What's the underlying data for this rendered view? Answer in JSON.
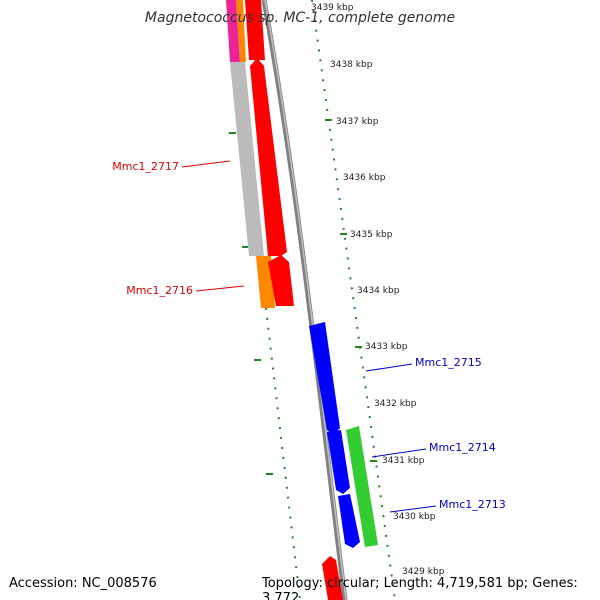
{
  "title": "Magnetococcus sp. MC-1, complete genome",
  "footer": {
    "accession": "Accession: NC_008576",
    "summary": "Topology: circular; Length: 4,719,581 bp; Genes: 3,772"
  },
  "ticks": [
    "3439 kbp",
    "3438 kbp",
    "3437 kbp",
    "3436 kbp",
    "3435 kbp",
    "3434 kbp",
    "3433 kbp",
    "3432 kbp",
    "3431 kbp",
    "3430 kbp",
    "3429 kbp"
  ],
  "genes": [
    {
      "name": "Mmc1_2717",
      "color": "#dd0000"
    },
    {
      "name": "Mmc1_2716",
      "color": "#dd0000"
    },
    {
      "name": "Mmc1_2715",
      "color": "#0000cc"
    },
    {
      "name": "Mmc1_2714",
      "color": "#0000cc"
    },
    {
      "name": "Mmc1_2713",
      "color": "#0000cc"
    }
  ],
  "colors": {
    "red": "#ff0000",
    "blue": "#0000ff",
    "green": "#33cc33",
    "orange": "#ff8800",
    "magenta": "#ee2299",
    "gray": "#bbbbbb",
    "backbone": "#808080",
    "tick_green": "#228822"
  }
}
